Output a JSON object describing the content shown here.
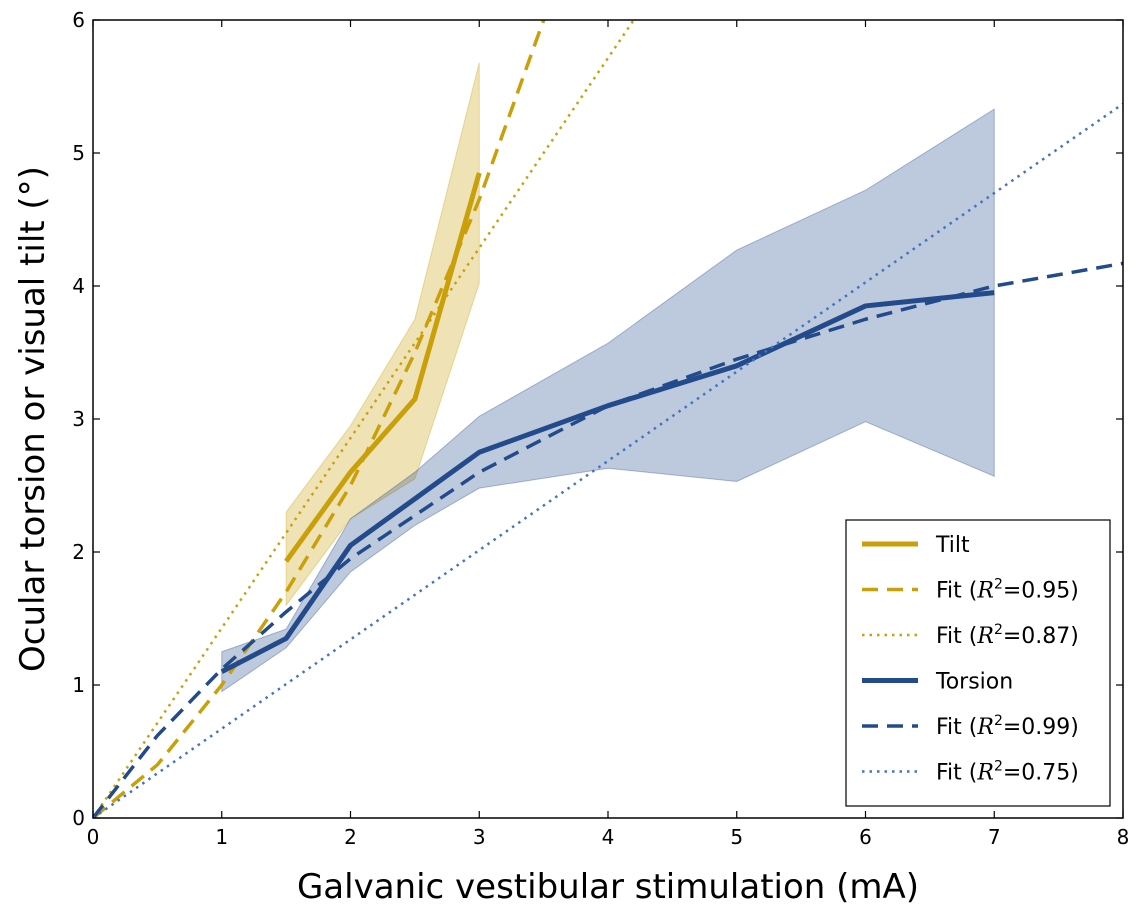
{
  "chart_data": {
    "type": "line",
    "xlabel": "Galvanic vestibular stimulation (mA)",
    "ylabel": "Ocular torsion or visual tilt (°)",
    "xlim": [
      0,
      8
    ],
    "ylim": [
      0,
      6
    ],
    "xticks": [
      "0",
      "1",
      "2",
      "3",
      "4",
      "5",
      "6",
      "7",
      "8"
    ],
    "yticks": [
      "0",
      "1",
      "2",
      "3",
      "4",
      "5",
      "6"
    ],
    "grid": false,
    "legend_position": "lower-right",
    "colors": {
      "tilt": "#c9a009",
      "torsion": "#234b8c",
      "torsion_fit_linear": "#4472c4"
    },
    "series": [
      {
        "name": "Tilt",
        "style": "solid",
        "x": [
          1.5,
          2,
          2.5,
          3
        ],
        "y": [
          1.93,
          2.6,
          3.15,
          4.85
        ],
        "band_upper": [
          2.3,
          2.95,
          3.75,
          5.68
        ],
        "band_lower": [
          1.6,
          2.25,
          2.55,
          4.02
        ]
      },
      {
        "name": "Fit (R²=0.95)",
        "label_prefix": "Fit (",
        "label_r2": "=0.95)",
        "style": "dashed",
        "x": [
          0,
          0.5,
          1,
          1.5,
          2,
          2.5,
          3,
          3.5
        ],
        "y": [
          0,
          0.4,
          1.0,
          1.7,
          2.5,
          3.5,
          4.65,
          6.0
        ]
      },
      {
        "name": "Fit (R²=0.87)",
        "label_prefix": "Fit (",
        "label_r2": "=0.87)",
        "style": "dotted",
        "x": [
          0,
          4.2
        ],
        "y": [
          0,
          6.0
        ]
      },
      {
        "name": "Torsion",
        "style": "solid",
        "x": [
          1,
          1.5,
          2,
          2.5,
          3,
          4,
          5,
          6,
          7
        ],
        "y": [
          1.1,
          1.35,
          2.05,
          2.4,
          2.75,
          3.1,
          3.4,
          3.85,
          3.95
        ],
        "band_upper": [
          1.25,
          1.42,
          2.25,
          2.6,
          3.02,
          3.57,
          4.27,
          4.72,
          5.33
        ],
        "band_lower": [
          0.95,
          1.28,
          1.85,
          2.2,
          2.48,
          2.63,
          2.53,
          2.98,
          2.57
        ]
      },
      {
        "name": "Fit (R²=0.99)",
        "label_prefix": "Fit (",
        "label_r2": "=0.99)",
        "style": "dashed",
        "x": [
          0,
          0.5,
          1,
          1.5,
          2,
          3,
          4,
          5,
          6,
          7,
          8
        ],
        "y": [
          0,
          0.62,
          1.12,
          1.55,
          1.95,
          2.6,
          3.1,
          3.45,
          3.75,
          4.0,
          4.17
        ]
      },
      {
        "name": "Fit (R²=0.75)",
        "label_prefix": "Fit (",
        "label_r2": "=0.75)",
        "style": "dotted",
        "x": [
          0,
          8
        ],
        "y": [
          0,
          5.37
        ]
      }
    ]
  }
}
